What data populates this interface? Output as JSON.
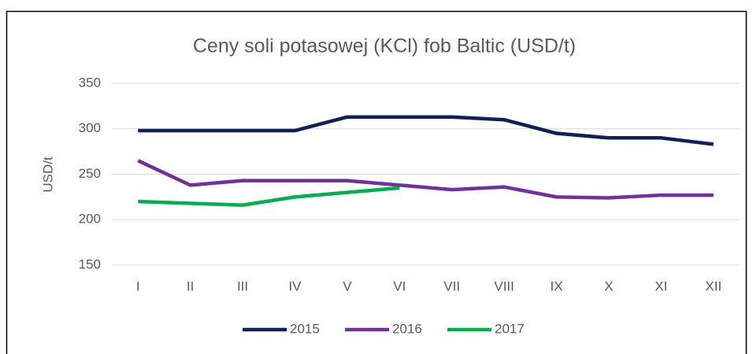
{
  "chart_data": {
    "type": "line",
    "title": "Ceny soli potasowej (KCl) fob Baltic (USD/t)",
    "y_label": "USD/t",
    "categories": [
      "I",
      "II",
      "III",
      "IV",
      "V",
      "VI",
      "VII",
      "VIII",
      "IX",
      "X",
      "XI",
      "XII"
    ],
    "series": [
      {
        "name": "2015",
        "color": "#0e1f5b",
        "values": [
          298,
          298,
          298,
          298,
          313,
          313,
          313,
          310,
          295,
          290,
          290,
          283
        ]
      },
      {
        "name": "2016",
        "color": "#7030a0",
        "values": [
          265,
          238,
          243,
          243,
          243,
          238,
          233,
          236,
          225,
          224,
          227,
          227
        ]
      },
      {
        "name": "2017",
        "color": "#00b050",
        "values": [
          220,
          218,
          216,
          225,
          230,
          235,
          null,
          null,
          null,
          null,
          null,
          null
        ]
      }
    ],
    "ylim": [
      150,
      350
    ],
    "yticks": [
      150,
      200,
      250,
      300,
      350
    ],
    "grid": true,
    "legend": "bottom"
  }
}
